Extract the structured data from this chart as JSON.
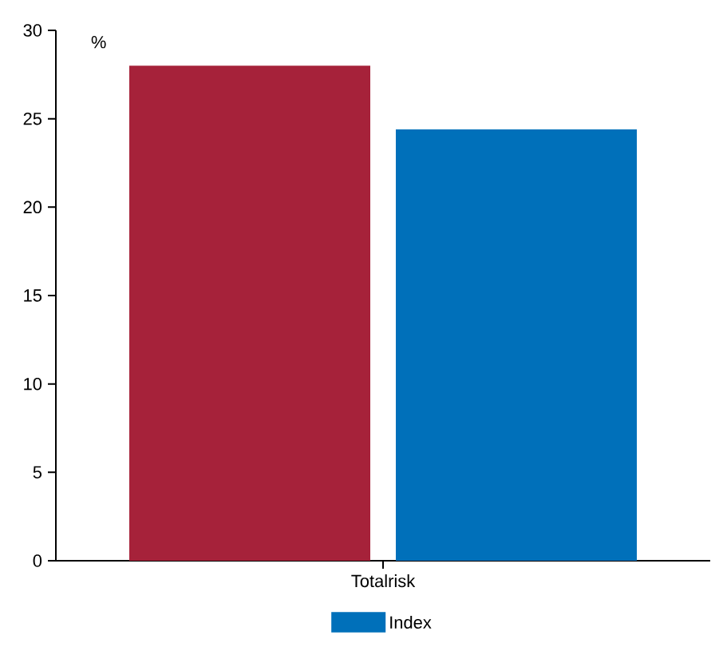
{
  "chart_data": {
    "type": "bar",
    "ylabel": "%",
    "categories": [
      "Totalrisk"
    ],
    "series": [
      {
        "color": "#a6223a",
        "values": [
          28.0
        ]
      },
      {
        "name": "Index",
        "color": "#0070ba",
        "values": [
          24.4
        ]
      }
    ],
    "ylim": [
      0,
      30
    ],
    "yticks": [
      0,
      5,
      10,
      15,
      20,
      25,
      30
    ],
    "grid": false,
    "legend": "bottom"
  }
}
